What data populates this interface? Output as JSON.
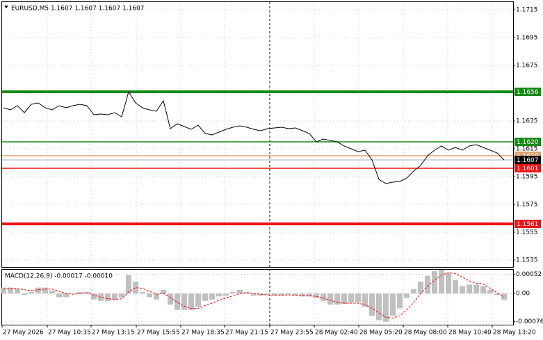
{
  "chart_data": [
    {
      "type": "line",
      "title": "EURUSD,M5  1.1607 1.1607 1.1607 1.1607",
      "color": "#000000",
      "values": [
        1.16445,
        1.1643,
        1.1646,
        1.1641,
        1.1647,
        1.1648,
        1.16445,
        1.1643,
        1.1646,
        1.16445,
        1.1646,
        1.1647,
        1.1646,
        1.16395,
        1.164,
        1.16395,
        1.1641,
        1.1638,
        1.1656,
        1.1648,
        1.16445,
        1.1643,
        1.1642,
        1.16495,
        1.16295,
        1.1633,
        1.1631,
        1.1629,
        1.1632,
        1.1626,
        1.1625,
        1.1627,
        1.1629,
        1.16305,
        1.16315,
        1.16305,
        1.1629,
        1.1628,
        1.16295,
        1.163,
        1.16305,
        1.16295,
        1.163,
        1.1628,
        1.1626,
        1.162,
        1.1622,
        1.1621,
        1.162,
        1.1617,
        1.1615,
        1.1613,
        1.1614,
        1.1607,
        1.1593,
        1.159,
        1.1591,
        1.15915,
        1.1594,
        1.1599,
        1.1603,
        1.161,
        1.1614,
        1.1617,
        1.1614,
        1.1616,
        1.1614,
        1.1617,
        1.1618,
        1.1616,
        1.1614,
        1.1612,
        1.1607
      ],
      "xlim": [
        -0.2,
        73.3
      ],
      "ylim": [
        1.153,
        1.17205
      ],
      "yticks": [
        1.1715,
        1.1695,
        1.1675,
        1.1655,
        1.1635,
        1.1615,
        1.1595,
        1.1575,
        1.1555,
        1.1535
      ],
      "grid": true,
      "levels": [
        {
          "value": 1.1656,
          "color": "#138a13",
          "thick": true
        },
        {
          "value": 1.162,
          "label": "1.1620",
          "color": "#138a13",
          "thick": false
        },
        {
          "value": 1.161,
          "label": "1.1610",
          "color": "#e0a070",
          "thick": false
        },
        {
          "value": 1.1601,
          "color": "#ee1111",
          "thick": false
        },
        {
          "value": 1.1561,
          "color": "#ee1111",
          "thick": true
        }
      ],
      "current_price": 1.1607
    },
    {
      "type": "macd",
      "title": "MACD(12,26,9) -0.00017 -0.00010",
      "color": "#c0c0c0",
      "values": [
        0.00016,
        0.00016,
        0.00012,
        -4e-05,
        4e-05,
        0.00016,
        0.00016,
        8e-05,
        -0.0001,
        -0.0001,
        0,
        4e-05,
        4e-05,
        -0.00016,
        -0.0002,
        -0.0002,
        -0.00016,
        -0.0001,
        0.0005,
        0.00032,
        4e-05,
        -0.0001,
        -0.00016,
        0.0001,
        -0.0003,
        -0.00044,
        -0.00044,
        -0.00044,
        -0.00036,
        -0.0002,
        -0.00016,
        -8e-05,
        -6e-05,
        4e-05,
        0.0001,
        4e-05,
        -6e-05,
        -6e-05,
        -4e-05,
        -6e-05,
        -6e-05,
        -4e-05,
        -6e-05,
        -8e-05,
        -8e-05,
        -0.00012,
        -0.0002,
        -0.0003,
        -0.0003,
        -0.00028,
        -0.00024,
        -0.00024,
        -0.00036,
        -0.0006,
        -0.00072,
        -0.00076,
        -0.0006,
        -0.0004,
        -0.00012,
        0.00012,
        0.00032,
        0.00048,
        0.0006,
        0.00064,
        0.00056,
        0.00036,
        0.0002,
        0.00024,
        0.00024,
        0.0002,
        0.0001,
        -4e-05,
        -0.00017
      ],
      "signal": [
        0.00012,
        0.00014,
        0.00014,
        0.0001,
        8e-05,
        0.0001,
        0.00012,
        0.00012,
        6e-05,
        0,
        -2e-05,
        0,
        2e-05,
        -4e-05,
        -0.0001,
        -0.00014,
        -0.00016,
        -0.00014,
        4e-05,
        0.00016,
        0.00014,
        6e-05,
        -2e-05,
        0,
        -0.0001,
        -0.00024,
        -0.00034,
        -0.0004,
        -0.0004,
        -0.00032,
        -0.00026,
        -0.00018,
        -0.00012,
        -6e-05,
        0,
        2e-05,
        0,
        -2e-05,
        -4e-05,
        -4e-05,
        -4e-05,
        -4e-05,
        -4e-05,
        -6e-05,
        -6e-05,
        -8e-05,
        -0.00012,
        -0.00018,
        -0.00024,
        -0.00026,
        -0.00026,
        -0.00026,
        -0.0003,
        -0.0004,
        -0.00052,
        -0.00064,
        -0.00066,
        -0.0006,
        -0.00044,
        -0.00024,
        0,
        0.0002,
        0.00036,
        0.0005,
        0.00056,
        0.00054,
        0.00044,
        0.00034,
        0.00028,
        0.00026,
        0.00014,
        2e-05,
        -0.0001
      ],
      "signal_color": "#ff0000",
      "xlim": [
        -0.2,
        73.3
      ],
      "ylim": [
        -0.00084,
        0.00064
      ],
      "yticks": [
        0.00052,
        {
          "value": 0,
          "label": "0.00"
        },
        -0.00076
      ],
      "xticks": [
        {
          "value": -0.2,
          "label": "27 May 2026"
        },
        {
          "value": 6.3,
          "label": "27 May 10:35"
        },
        {
          "value": 12.6,
          "label": "27 May 13:15"
        },
        {
          "value": 19.1,
          "label": "27 May 15:55"
        },
        {
          "value": 25.5,
          "label": "27 May 18:35"
        },
        {
          "value": 31.8,
          "label": "27 May 21:15"
        },
        {
          "value": 38.3,
          "label": "27 May 23:55"
        },
        {
          "value": 44.7,
          "label": "28 May 02:40"
        },
        {
          "value": 51.1,
          "label": "28 May 05:20"
        },
        {
          "value": 57.5,
          "label": "28 May 08:00"
        },
        {
          "value": 63.9,
          "label": "28 May 10:40"
        },
        {
          "value": 70.3,
          "label": "28 May 13:20"
        }
      ],
      "grid": true
    }
  ]
}
